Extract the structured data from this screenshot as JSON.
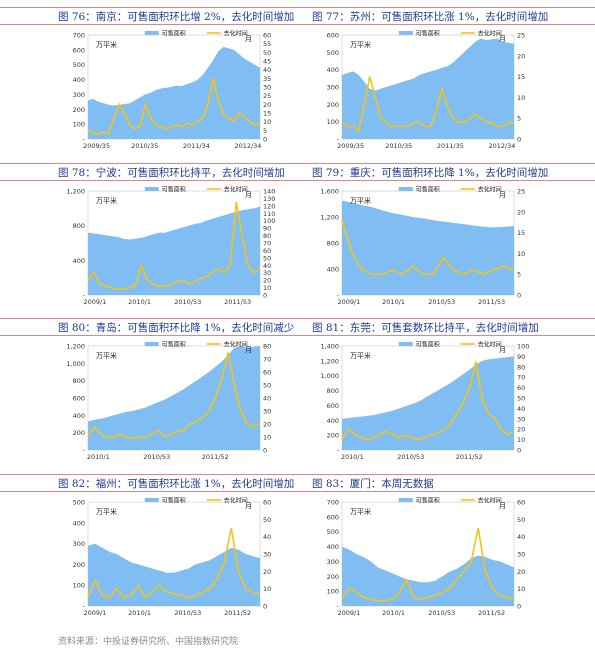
{
  "captions": [
    "图 76：南京：可售面积环比增 2%，去化时间增加",
    "图 77：苏州：可售面积环比涨 1%，去化时间增加",
    "图 78：宁波：可售面积环比持平，去化时间增加",
    "图 79：重庆：可售面积环比降 1%，去化时间增加",
    "图 80：青岛：可售面积环比降 1%，去化时间减少",
    "图 81：东莞：可售套数环比持平，去化时间增加",
    "图 82：福州：可售面积环比涨 1%，去化时间增加",
    "图 83：厦门：本周无数据"
  ],
  "source": "资料来源：中投证券研究所、中国指数研究院",
  "colors": {
    "area": "#7fbdf2",
    "line": "#f0c419",
    "rule": "#d98a84",
    "caption": "#1f3a93"
  },
  "chart_data": [
    {
      "type": "area",
      "city": "南京",
      "legend": [
        "可售面积",
        "去化时间"
      ],
      "left_unit": "万平米",
      "right_unit": "月",
      "ylim": [
        0,
        700
      ],
      "yticks": [
        "-",
        "100",
        "200",
        "300",
        "400",
        "500",
        "600",
        "700"
      ],
      "y2lim": [
        0,
        60
      ],
      "y2ticks": [
        "0",
        "5",
        "10",
        "15",
        "20",
        "25",
        "30",
        "35",
        "40",
        "45",
        "50",
        "55",
        "60"
      ],
      "xticks": [
        "2009/35",
        "2010/35",
        "2011/34",
        "2012/34"
      ],
      "xtick_pos": [
        0.05,
        0.33,
        0.63,
        0.93
      ],
      "area": [
        260,
        270,
        250,
        240,
        230,
        225,
        230,
        235,
        240,
        260,
        280,
        300,
        310,
        330,
        340,
        345,
        350,
        360,
        355,
        370,
        380,
        400,
        430,
        480,
        530,
        590,
        620,
        610,
        600,
        570,
        540,
        520,
        500,
        480
      ],
      "line": [
        5,
        4,
        3,
        4,
        3,
        12,
        20,
        15,
        8,
        6,
        7,
        20,
        12,
        8,
        7,
        6,
        7,
        8,
        7,
        9,
        8,
        10,
        12,
        20,
        35,
        22,
        14,
        12,
        10,
        15,
        13,
        10,
        8,
        9
      ]
    },
    {
      "type": "area",
      "city": "苏州",
      "legend": [
        "可售面积",
        "去化时间"
      ],
      "left_unit": "万平米",
      "right_unit": "月",
      "ylim": [
        0,
        600
      ],
      "yticks": [
        "-",
        "100",
        "200",
        "300",
        "400",
        "500",
        "600"
      ],
      "y2lim": [
        0,
        25
      ],
      "y2ticks": [
        "0",
        "5",
        "10",
        "15",
        "20",
        "25"
      ],
      "xticks": [
        "2009/35",
        "2010/35",
        "2011/35",
        "2012/34"
      ],
      "xtick_pos": [
        0.05,
        0.33,
        0.63,
        0.93
      ],
      "area": [
        370,
        380,
        390,
        370,
        330,
        290,
        280,
        290,
        300,
        310,
        320,
        330,
        340,
        350,
        370,
        380,
        390,
        400,
        410,
        420,
        440,
        470,
        500,
        530,
        560,
        580,
        570,
        575,
        580,
        560,
        555,
        550
      ],
      "line": [
        4,
        3,
        3,
        2,
        8,
        15,
        10,
        5,
        4,
        3,
        3,
        3,
        3,
        4,
        4,
        3,
        3,
        7,
        12,
        8,
        5,
        4,
        4,
        5,
        6,
        5,
        4,
        4,
        3,
        3,
        4,
        4
      ]
    },
    {
      "type": "area",
      "city": "宁波",
      "legend": [
        "可售面积",
        "去化时间"
      ],
      "left_unit": "万平米",
      "right_unit": "月",
      "ylim": [
        0,
        1200
      ],
      "yticks": [
        "-",
        "400",
        "800",
        "1,200"
      ],
      "y2lim": [
        0,
        140
      ],
      "y2ticks": [
        "0",
        "10",
        "20",
        "30",
        "40",
        "50",
        "60",
        "70",
        "80",
        "90",
        "100",
        "110",
        "120",
        "130",
        "140"
      ],
      "xticks": [
        "2009/1",
        "2010/1",
        "2010/53",
        "2011/53"
      ],
      "xtick_pos": [
        0.04,
        0.3,
        0.58,
        0.87
      ],
      "area": [
        720,
        710,
        700,
        690,
        680,
        670,
        650,
        640,
        650,
        660,
        680,
        700,
        720,
        720,
        740,
        760,
        780,
        800,
        820,
        830,
        860,
        880,
        900,
        920,
        940,
        960,
        980,
        990,
        1000,
        1020
      ],
      "line": [
        20,
        30,
        15,
        12,
        10,
        8,
        8,
        10,
        12,
        40,
        20,
        15,
        12,
        12,
        15,
        18,
        20,
        15,
        18,
        22,
        25,
        30,
        35,
        30,
        40,
        125,
        80,
        40,
        30,
        35
      ]
    },
    {
      "type": "area",
      "city": "重庆",
      "legend": [
        "可售面积",
        "去化时间"
      ],
      "left_unit": "万平米",
      "right_unit": "月",
      "ylim": [
        0,
        1600
      ],
      "yticks": [
        "-",
        "400",
        "800",
        "1,200",
        "1,600"
      ],
      "y2lim": [
        0,
        25
      ],
      "y2ticks": [
        "0",
        "5",
        "10",
        "15",
        "20",
        "25"
      ],
      "xticks": [
        "2009/1",
        "2010/1",
        "2010/53",
        "2011/53"
      ],
      "xtick_pos": [
        0.04,
        0.3,
        0.58,
        0.87
      ],
      "area": [
        1450,
        1420,
        1380,
        1350,
        1300,
        1260,
        1230,
        1200,
        1180,
        1150,
        1130,
        1110,
        1090,
        1070,
        1050,
        1040,
        1050,
        1060
      ],
      "line": [
        18,
        10,
        6,
        5,
        5,
        6,
        5,
        7,
        5,
        5,
        9,
        6,
        5,
        6,
        5,
        6,
        7,
        6
      ]
    },
    {
      "type": "area",
      "city": "青岛",
      "legend": [
        "可售面积",
        "去化时间"
      ],
      "left_unit": "万平米",
      "right_unit": "月",
      "ylim": [
        0,
        1200
      ],
      "yticks": [
        "-",
        "200",
        "400",
        "600",
        "800",
        "1,000",
        "1,200"
      ],
      "y2lim": [
        0,
        80
      ],
      "y2ticks": [
        "0",
        "10",
        "20",
        "30",
        "40",
        "50",
        "60",
        "70",
        "80"
      ],
      "xticks": [
        "2010/1",
        "2010/53",
        "2011/52"
      ],
      "xtick_pos": [
        0.06,
        0.4,
        0.74
      ],
      "area": [
        330,
        350,
        360,
        380,
        400,
        420,
        440,
        450,
        470,
        490,
        520,
        550,
        580,
        620,
        660,
        700,
        750,
        800,
        850,
        900,
        960,
        1020,
        1100,
        1180,
        1200,
        1180,
        1190,
        1200
      ],
      "line": [
        10,
        18,
        12,
        10,
        10,
        12,
        10,
        9,
        10,
        10,
        12,
        15,
        10,
        12,
        14,
        15,
        20,
        22,
        25,
        30,
        40,
        55,
        75,
        50,
        30,
        20,
        18,
        20
      ]
    },
    {
      "type": "area",
      "city": "东莞",
      "legend": [
        "可售面积",
        "去化时间"
      ],
      "left_unit": "万平米",
      "right_unit": "月",
      "ylim": [
        0,
        1400
      ],
      "yticks": [
        "-",
        "200",
        "400",
        "600",
        "800",
        "1,000",
        "1,200",
        "1,400"
      ],
      "y2lim": [
        0,
        100
      ],
      "y2ticks": [
        "0",
        "10",
        "20",
        "30",
        "40",
        "50",
        "60",
        "70",
        "80",
        "90",
        "100"
      ],
      "xticks": [
        "2010/1",
        "2010/53",
        "2011/52"
      ],
      "xtick_pos": [
        0.06,
        0.4,
        0.74
      ],
      "area": [
        420,
        430,
        440,
        450,
        460,
        470,
        490,
        510,
        530,
        560,
        590,
        620,
        650,
        700,
        750,
        800,
        850,
        900,
        960,
        1020,
        1080,
        1150,
        1200,
        1220,
        1230,
        1240,
        1250,
        1260
      ],
      "line": [
        10,
        20,
        15,
        12,
        10,
        12,
        15,
        18,
        15,
        12,
        14,
        12,
        10,
        12,
        14,
        16,
        20,
        25,
        35,
        45,
        60,
        85,
        50,
        35,
        30,
        20,
        15,
        18
      ]
    },
    {
      "type": "area",
      "city": "福州",
      "legend": [
        "可售面积",
        "去化时间"
      ],
      "left_unit": "万平米",
      "right_unit": "月",
      "ylim": [
        0,
        500
      ],
      "yticks": [
        "-",
        "100",
        "200",
        "300",
        "400",
        "500"
      ],
      "y2lim": [
        0,
        60
      ],
      "y2ticks": [
        "0",
        "10",
        "20",
        "30",
        "40",
        "50",
        "60"
      ],
      "xticks": [
        "2009/1",
        "2010/1",
        "2010/53",
        "2011/52"
      ],
      "xtick_pos": [
        0.04,
        0.3,
        0.58,
        0.87
      ],
      "area": [
        290,
        300,
        280,
        260,
        250,
        230,
        210,
        200,
        190,
        180,
        170,
        160,
        160,
        170,
        180,
        200,
        210,
        220,
        240,
        260,
        280,
        270,
        250,
        240,
        230
      ],
      "line": [
        5,
        15,
        6,
        5,
        10,
        5,
        6,
        12,
        5,
        8,
        12,
        8,
        7,
        6,
        5,
        6,
        8,
        10,
        15,
        25,
        45,
        20,
        10,
        8,
        7
      ]
    },
    {
      "type": "area",
      "city": "厦门",
      "legend": [
        "可售面积",
        "去化时间"
      ],
      "left_unit": "万平米",
      "right_unit": "月",
      "ylim": [
        0,
        700
      ],
      "yticks": [
        "-",
        "100",
        "200",
        "300",
        "400",
        "500",
        "600",
        "700"
      ],
      "y2lim": [
        0,
        60
      ],
      "y2ticks": [
        "0",
        "10",
        "20",
        "30",
        "40",
        "50",
        "60"
      ],
      "xticks": [
        "2009/1",
        "2010/1",
        "2010/53",
        "2011/52"
      ],
      "xtick_pos": [
        0.04,
        0.3,
        0.58,
        0.87
      ],
      "area": [
        400,
        380,
        350,
        330,
        300,
        260,
        240,
        220,
        200,
        180,
        170,
        160,
        160,
        170,
        200,
        230,
        250,
        280,
        320,
        340,
        330,
        310,
        300,
        280,
        260
      ],
      "line": [
        5,
        10,
        8,
        5,
        4,
        3,
        3,
        4,
        8,
        15,
        5,
        4,
        5,
        6,
        8,
        10,
        15,
        20,
        25,
        45,
        20,
        10,
        6,
        5,
        4
      ]
    }
  ]
}
